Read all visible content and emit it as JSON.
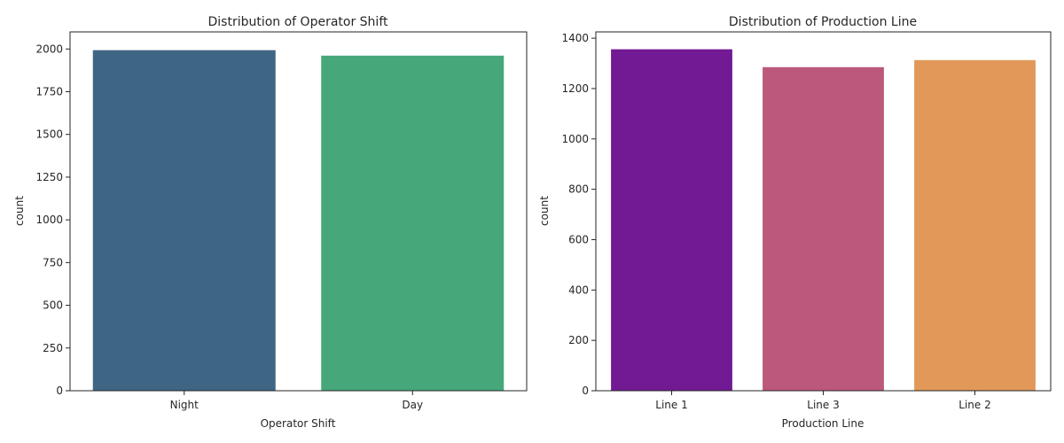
{
  "chart_data": [
    {
      "type": "bar",
      "title": "Distribution of Operator Shift",
      "xlabel": "Operator Shift",
      "ylabel": "count",
      "categories": [
        "Night",
        "Day"
      ],
      "values": [
        1993,
        1961
      ],
      "colors": [
        "#3e6584",
        "#46a87a"
      ],
      "ylim": [
        0,
        2100
      ],
      "yticks": [
        0,
        250,
        500,
        750,
        1000,
        1250,
        1500,
        1750,
        2000
      ],
      "grid": false
    },
    {
      "type": "bar",
      "title": "Distribution of Production Line",
      "xlabel": "Production Line",
      "ylabel": "count",
      "categories": [
        "Line 1",
        "Line 3",
        "Line 2"
      ],
      "values": [
        1356,
        1285,
        1313
      ],
      "colors": [
        "#721994",
        "#bc587b",
        "#e19858"
      ],
      "ylim": [
        0,
        1425
      ],
      "yticks": [
        0,
        200,
        400,
        600,
        800,
        1000,
        1200,
        1400
      ],
      "grid": false
    }
  ]
}
